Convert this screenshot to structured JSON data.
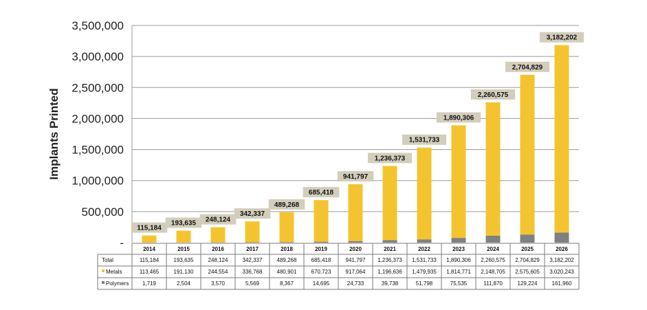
{
  "chart_data": {
    "type": "bar",
    "ylabel": "Implants Printed",
    "ylim": [
      0,
      3500000
    ],
    "yticks": [
      "-",
      "500,000",
      "1,000,000",
      "1,500,000",
      "2,000,000",
      "2,500,000",
      "3,000,000",
      "3,500,000"
    ],
    "grid": true,
    "categories": [
      "2014",
      "2015",
      "2016",
      "2017",
      "2018",
      "2019",
      "2020",
      "2021",
      "2022",
      "2023",
      "2024",
      "2025",
      "2026"
    ],
    "totals": [
      115184,
      193635,
      248124,
      342337,
      489268,
      685418,
      941797,
      1236373,
      1531733,
      1890306,
      2260575,
      2704829,
      3182202
    ],
    "total_labels": [
      "115,184",
      "193,635",
      "248,124",
      "342,337",
      "489,268",
      "685,418",
      "941,797",
      "1,236,373",
      "1,531,733",
      "1,890,306",
      "2,260,575",
      "2,704,829",
      "3,182,202"
    ],
    "series": [
      {
        "name": "Metals",
        "color": "#F4C430",
        "values": [
          113465,
          191130,
          244554,
          336768,
          480901,
          670723,
          917064,
          1196636,
          1479935,
          1814771,
          2148705,
          2575605,
          3020243
        ]
      },
      {
        "name": "Polymers",
        "color": "#808080",
        "values": [
          1719,
          2504,
          3570,
          5569,
          8367,
          14695,
          24733,
          39738,
          51798,
          75535,
          111870,
          129224,
          161960
        ]
      }
    ],
    "table": {
      "rows": [
        {
          "label": "Total",
          "marker": "",
          "cells": [
            "115,184",
            "193,635",
            "248,124",
            "342,337",
            "489,268",
            "685,418",
            "941,797",
            "1,236,373",
            "1,531,733",
            "1,890,306",
            "2,260,575",
            "2,704,829",
            "3,182,202"
          ]
        },
        {
          "label": "Metals",
          "marker": "#F4C430",
          "cells": [
            "113,465",
            "191,130",
            "244,554",
            "336,768",
            "480,901",
            "670,723",
            "917,064",
            "1,196,636",
            "1,479,935",
            "1,814,771",
            "2,148,705",
            "2,575,605",
            "3,020,243"
          ]
        },
        {
          "label": "Polymers",
          "marker": "#808080",
          "cells": [
            "1,719",
            "2,504",
            "3,570",
            "5,569",
            "8,367",
            "14,695",
            "24,733",
            "39,738",
            "51,798",
            "75,535",
            "111,870",
            "129,224",
            "161,960"
          ]
        }
      ]
    },
    "label_box_color": "#D3CDBB"
  }
}
